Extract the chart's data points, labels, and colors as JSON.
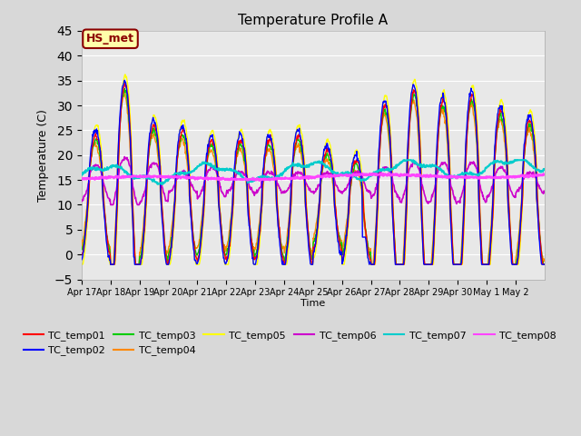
{
  "title": "Temperature Profile A",
  "xlabel": "Time",
  "ylabel": "Temperature (C)",
  "ylim": [
    -5,
    45
  ],
  "yticks": [
    -5,
    0,
    5,
    10,
    15,
    20,
    25,
    30,
    35,
    40,
    45
  ],
  "xtick_labels": [
    "Apr 17",
    "Apr 18",
    "Apr 19",
    "Apr 20",
    "Apr 21",
    "Apr 22",
    "Apr 23",
    "Apr 24",
    "Apr 25",
    "Apr 26",
    "Apr 27",
    "Apr 28",
    "Apr 29",
    "Apr 30",
    "May 1",
    "May 2"
  ],
  "bg_color": "#d8d8d8",
  "plot_bg_color": "#e8e8e8",
  "grid_color": "#ffffff",
  "annotation_text": "HS_met",
  "annotation_color": "#8b0000",
  "annotation_bg": "#ffffaa",
  "series_colors": {
    "TC_temp01": "#ff0000",
    "TC_temp02": "#0000ff",
    "TC_temp03": "#00cc00",
    "TC_temp04": "#ff8800",
    "TC_temp05": "#ffff00",
    "TC_temp06": "#cc00cc",
    "TC_temp07": "#00cccc",
    "TC_temp08": "#ff44ff"
  },
  "n_points": 960
}
